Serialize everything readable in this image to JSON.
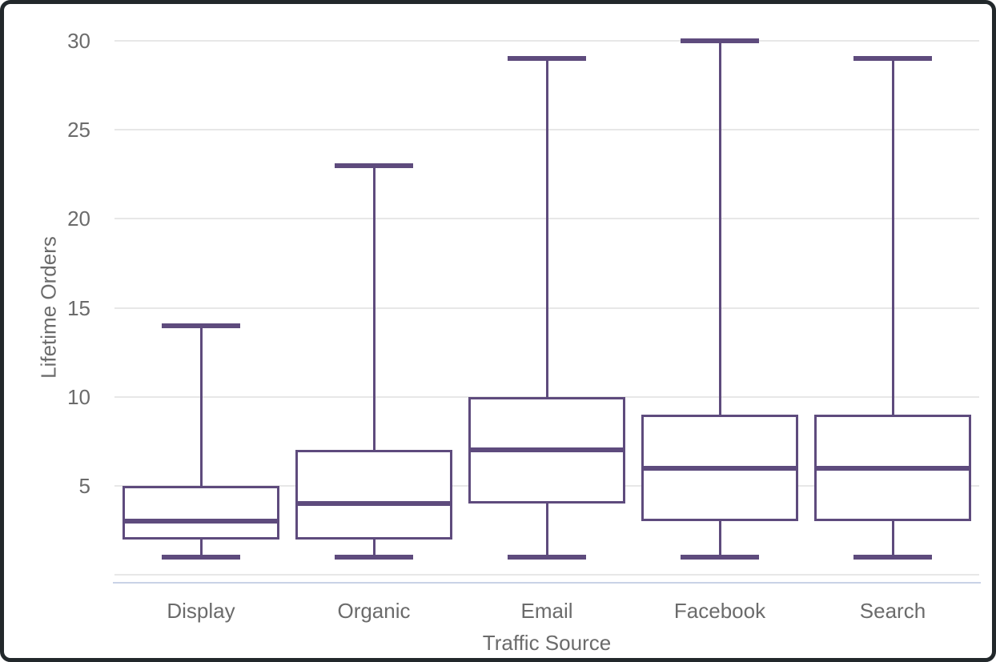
{
  "chart_data": {
    "type": "box",
    "title": "",
    "xlabel": "Traffic Source",
    "ylabel": "Lifetime Orders",
    "categories": [
      "Display",
      "Organic",
      "Email",
      "Facebook",
      "Search"
    ],
    "series": [
      {
        "name": "Display",
        "min": 1,
        "q1": 2,
        "median": 3,
        "q3": 5,
        "max": 14
      },
      {
        "name": "Organic",
        "min": 1,
        "q1": 2,
        "median": 4,
        "q3": 7,
        "max": 23
      },
      {
        "name": "Email",
        "min": 1,
        "q1": 4,
        "median": 7,
        "q3": 10,
        "max": 29
      },
      {
        "name": "Facebook",
        "min": 1,
        "q1": 3,
        "median": 6,
        "q3": 9,
        "max": 30
      },
      {
        "name": "Search",
        "min": 1,
        "q1": 3,
        "median": 6,
        "q3": 9,
        "max": 29
      }
    ],
    "ylim": [
      0,
      30
    ],
    "y_ticks": [
      5,
      10,
      15,
      20,
      25,
      30
    ],
    "grid": true,
    "legend": "none",
    "colors": {
      "box_stroke": "#5e4b7d",
      "gridline": "#e7e7e7",
      "axis_baseline": "#c9d2e6",
      "text": "#6b6b6b",
      "frame_border": "#22282b",
      "background": "#ffffff"
    }
  }
}
